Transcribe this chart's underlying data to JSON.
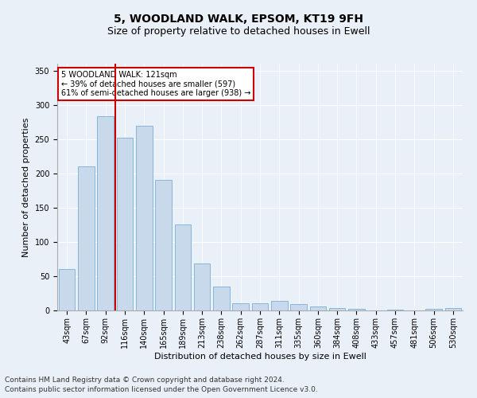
{
  "title": "5, WOODLAND WALK, EPSOM, KT19 9FH",
  "subtitle": "Size of property relative to detached houses in Ewell",
  "xlabel": "Distribution of detached houses by size in Ewell",
  "ylabel": "Number of detached properties",
  "categories": [
    "43sqm",
    "67sqm",
    "92sqm",
    "116sqm",
    "140sqm",
    "165sqm",
    "189sqm",
    "213sqm",
    "238sqm",
    "262sqm",
    "287sqm",
    "311sqm",
    "335sqm",
    "360sqm",
    "384sqm",
    "408sqm",
    "433sqm",
    "457sqm",
    "481sqm",
    "506sqm",
    "530sqm"
  ],
  "values": [
    60,
    210,
    283,
    252,
    270,
    190,
    125,
    68,
    35,
    11,
    11,
    14,
    9,
    6,
    4,
    2,
    0,
    1,
    0,
    2,
    4
  ],
  "bar_color": "#c9d9ec",
  "bar_edge_color": "#7aafd4",
  "vline_x": 3.0,
  "vline_color": "#cc0000",
  "ylim": [
    0,
    360
  ],
  "yticks": [
    0,
    50,
    100,
    150,
    200,
    250,
    300,
    350
  ],
  "annotation_title": "5 WOODLAND WALK: 121sqm",
  "annotation_line1": "← 39% of detached houses are smaller (597)",
  "annotation_line2": "61% of semi-detached houses are larger (938) →",
  "annotation_box_color": "#ffffff",
  "annotation_box_edge": "#cc0000",
  "footer1": "Contains HM Land Registry data © Crown copyright and database right 2024.",
  "footer2": "Contains public sector information licensed under the Open Government Licence v3.0.",
  "background_color": "#eaf0f7",
  "plot_bg_color": "#eaf0f7",
  "title_fontsize": 10,
  "subtitle_fontsize": 9,
  "axis_label_fontsize": 8,
  "tick_fontsize": 7,
  "footer_fontsize": 6.5
}
